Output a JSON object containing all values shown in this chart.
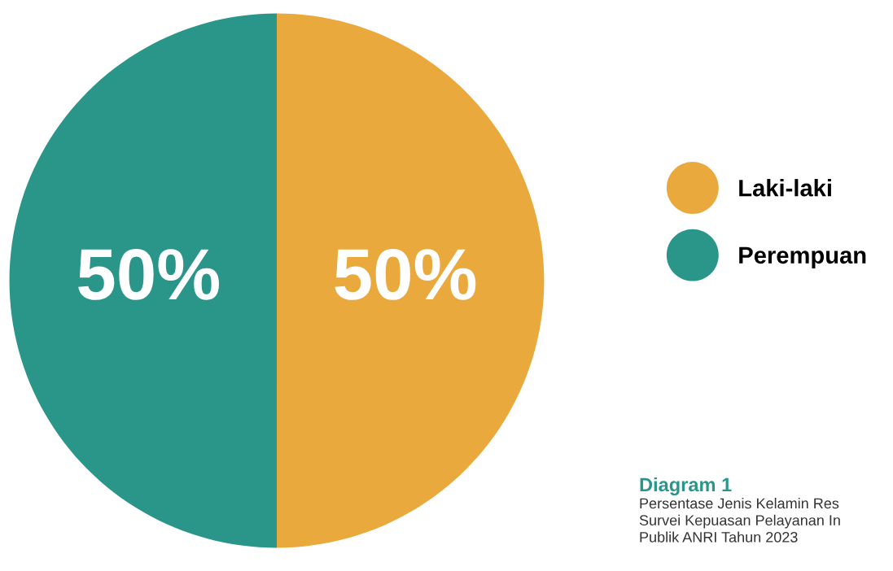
{
  "chart_data": {
    "type": "pie",
    "title": "Diagram 1",
    "annotations": [
      "Persentase Jenis Kelamin Res\nSurvei Kepuasan Pelayanan In\nPublik ANRI Tahun 2023"
    ],
    "categories": [
      "Laki-laki",
      "Perempuan"
    ],
    "values": [
      50,
      50
    ],
    "colors": [
      "#eaa93c",
      "#2a968a"
    ],
    "value_labels": [
      "50%",
      "50%"
    ],
    "legend": "right"
  }
}
